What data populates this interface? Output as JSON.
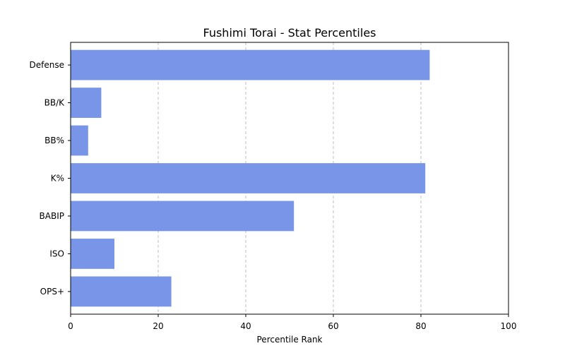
{
  "chart_data": {
    "type": "bar",
    "orientation": "horizontal",
    "title": "Fushimi Torai - Stat Percentiles",
    "xlabel": "Percentile Rank",
    "ylabel": "",
    "categories": [
      "OPS+",
      "ISO",
      "BABIP",
      "K%",
      "BB%",
      "BB/K",
      "Defense"
    ],
    "values": [
      23,
      10,
      51,
      81,
      4,
      7,
      82
    ],
    "xlim": [
      0,
      100
    ],
    "xticks": [
      0,
      20,
      40,
      60,
      80,
      100
    ],
    "grid": "x dashed",
    "bar_color": "#7895e8"
  }
}
